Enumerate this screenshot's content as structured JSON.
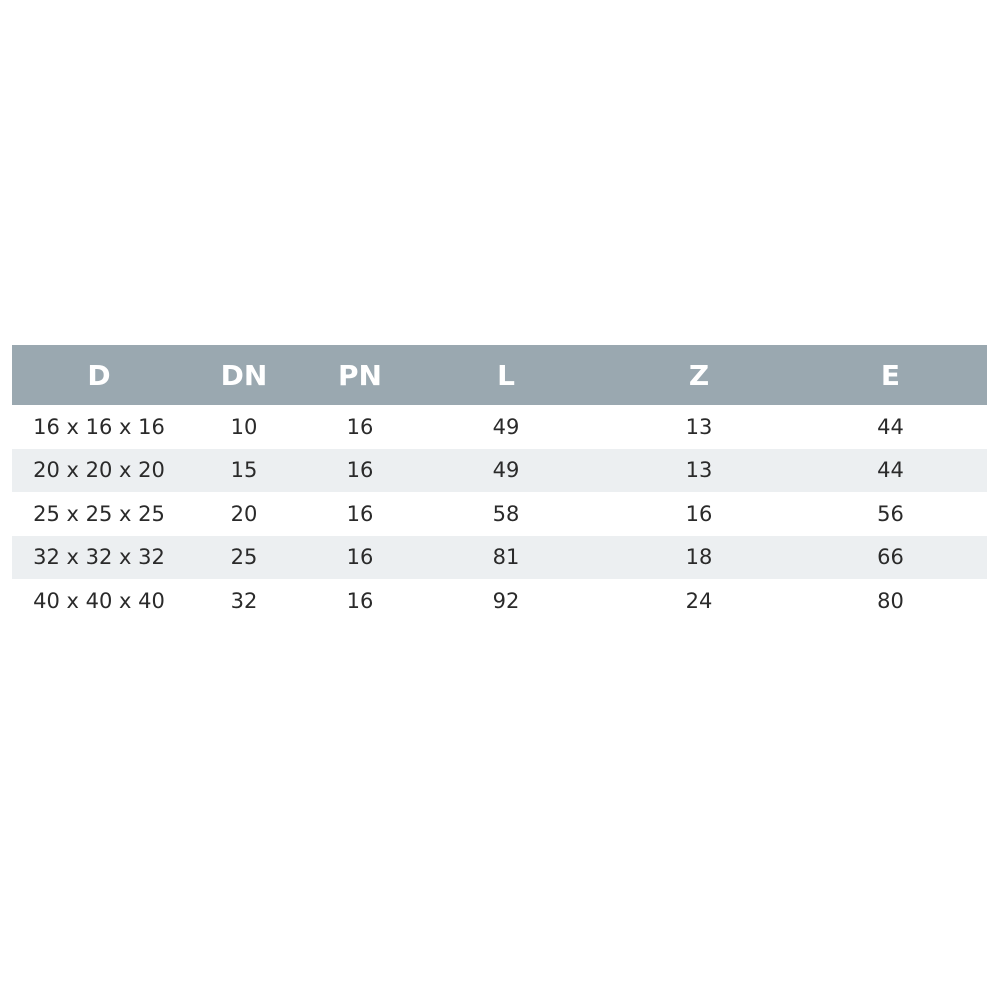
{
  "table": {
    "headers": [
      "D",
      "DN",
      "PN",
      "L",
      "Z",
      "E"
    ],
    "rows": [
      [
        "16 x 16 x 16",
        "10",
        "16",
        "49",
        "13",
        "44"
      ],
      [
        "20 x 20 x 20",
        "15",
        "16",
        "49",
        "13",
        "44"
      ],
      [
        "25 x 25 x 25",
        "20",
        "16",
        "58",
        "16",
        "56"
      ],
      [
        "32 x 32 x 32",
        "25",
        "16",
        "81",
        "18",
        "66"
      ],
      [
        "40 x 40 x 40",
        "32",
        "16",
        "92",
        "24",
        "80"
      ]
    ],
    "colors": {
      "header_bg": "#9aa8b0",
      "header_text": "#ffffff",
      "alt_row_bg": "#eceff1",
      "text": "#2a2a2a"
    }
  }
}
